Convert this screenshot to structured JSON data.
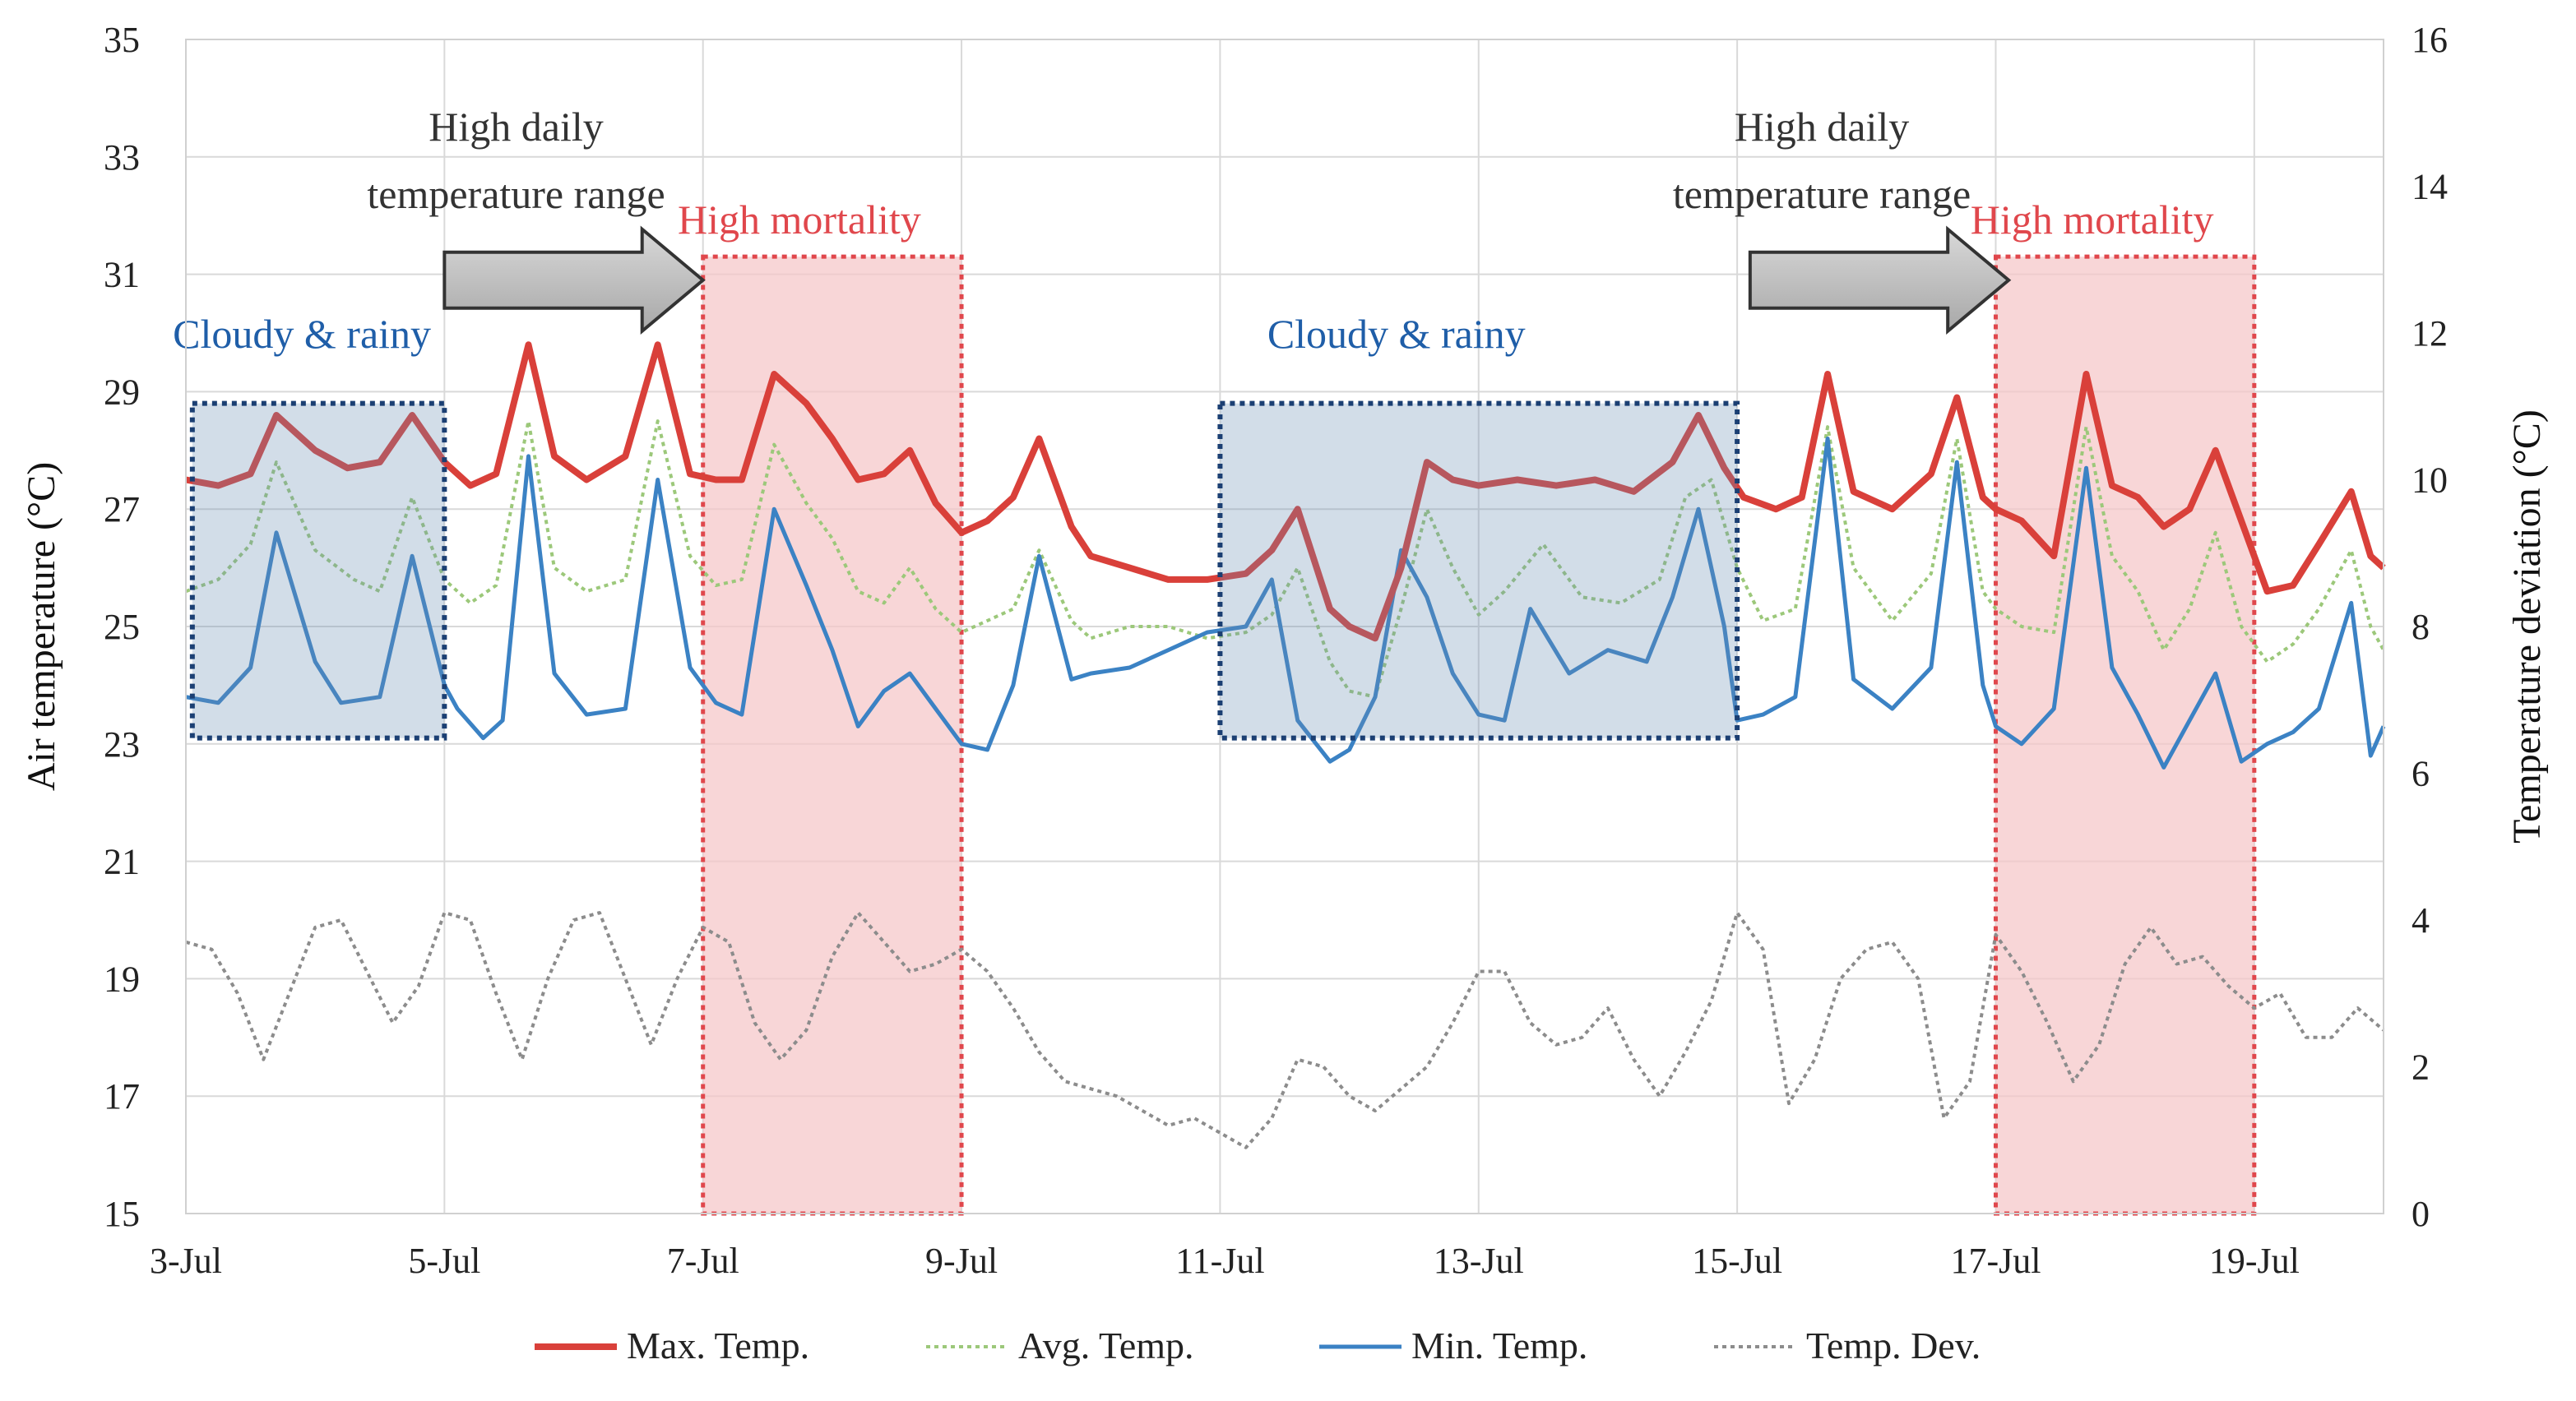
{
  "chart_data": {
    "type": "line",
    "title": "",
    "xlabel": "",
    "ylabel": "Air temperature (°C)",
    "y2label": "Temperature deviation (°C)",
    "xlim": [
      3,
      20
    ],
    "ylim": [
      15,
      35
    ],
    "y2lim": [
      0,
      16
    ],
    "grid": true,
    "x_ticks": [
      3,
      5,
      7,
      9,
      11,
      13,
      15,
      17,
      19
    ],
    "x_tick_labels": [
      "3-Jul",
      "5-Jul",
      "7-Jul",
      "9-Jul",
      "11-Jul",
      "13-Jul",
      "15-Jul",
      "17-Jul",
      "19-Jul"
    ],
    "y_ticks": [
      15,
      17,
      19,
      21,
      23,
      25,
      27,
      29,
      31,
      33,
      35
    ],
    "y_tick_labels": [
      "15",
      "17",
      "19",
      "21",
      "23",
      "25",
      "27",
      "29",
      "31",
      "33",
      "35"
    ],
    "y2_ticks": [
      0,
      2,
      4,
      6,
      8,
      10,
      12,
      14,
      16
    ],
    "y2_tick_labels": [
      "0",
      "2",
      "4",
      "6",
      "8",
      "10",
      "12",
      "14",
      "16"
    ],
    "legend_position": "bottom",
    "series": [
      {
        "name": "Max. Temp.",
        "axis": "left",
        "color": "#d9403a",
        "style": "solid-thick",
        "x": [
          3.0,
          3.25,
          3.5,
          3.7,
          4.0,
          4.25,
          4.5,
          4.75,
          5.0,
          5.2,
          5.4,
          5.65,
          5.85,
          6.1,
          6.4,
          6.65,
          6.9,
          7.1,
          7.3,
          7.55,
          7.8,
          8.0,
          8.2,
          8.4,
          8.6,
          8.8,
          9.0,
          9.2,
          9.4,
          9.6,
          9.85,
          10.0,
          10.3,
          10.6,
          10.9,
          11.2,
          11.4,
          11.6,
          11.85,
          12.0,
          12.2,
          12.4,
          12.6,
          12.8,
          13.0,
          13.3,
          13.6,
          13.9,
          14.2,
          14.5,
          14.7,
          14.9,
          15.05,
          15.3,
          15.5,
          15.7,
          15.9,
          16.2,
          16.5,
          16.7,
          16.9,
          17.0,
          17.2,
          17.45,
          17.7,
          17.9,
          18.1,
          18.3,
          18.5,
          18.7,
          18.9,
          19.1,
          19.3,
          19.5,
          19.75,
          19.9,
          20.0
        ],
        "values": [
          27.5,
          27.4,
          27.6,
          28.6,
          28.0,
          27.7,
          27.8,
          28.6,
          27.8,
          27.4,
          27.6,
          29.8,
          27.9,
          27.5,
          27.9,
          29.8,
          27.6,
          27.5,
          27.5,
          29.3,
          28.8,
          28.2,
          27.5,
          27.6,
          28.0,
          27.1,
          26.6,
          26.8,
          27.2,
          28.2,
          26.7,
          26.2,
          26.0,
          25.8,
          25.8,
          25.9,
          26.3,
          27.0,
          25.3,
          25.0,
          24.8,
          26.0,
          27.8,
          27.5,
          27.4,
          27.5,
          27.4,
          27.5,
          27.3,
          27.8,
          28.6,
          27.7,
          27.2,
          27.0,
          27.2,
          29.3,
          27.3,
          27.0,
          27.6,
          28.9,
          27.2,
          27.0,
          26.8,
          26.2,
          29.3,
          27.4,
          27.2,
          26.7,
          27.0,
          28.0,
          26.8,
          25.6,
          25.7,
          26.4,
          27.3,
          26.2,
          26.0
        ]
      },
      {
        "name": "Avg. Temp.",
        "axis": "left",
        "color": "#9cc87a",
        "style": "dotted",
        "x": [
          3.0,
          3.25,
          3.5,
          3.7,
          4.0,
          4.3,
          4.5,
          4.75,
          5.0,
          5.2,
          5.4,
          5.65,
          5.85,
          6.1,
          6.4,
          6.65,
          6.9,
          7.1,
          7.3,
          7.55,
          7.8,
          8.0,
          8.2,
          8.4,
          8.6,
          8.8,
          9.0,
          9.2,
          9.4,
          9.6,
          9.85,
          10.0,
          10.3,
          10.6,
          10.9,
          11.2,
          11.4,
          11.6,
          11.85,
          12.0,
          12.2,
          12.4,
          12.6,
          12.8,
          13.0,
          13.2,
          13.5,
          13.8,
          14.1,
          14.4,
          14.6,
          14.8,
          15.0,
          15.2,
          15.45,
          15.7,
          15.9,
          16.2,
          16.5,
          16.7,
          16.9,
          17.0,
          17.2,
          17.45,
          17.7,
          17.9,
          18.1,
          18.3,
          18.5,
          18.7,
          18.9,
          19.1,
          19.3,
          19.5,
          19.75,
          19.9,
          20.0
        ],
        "values": [
          25.6,
          25.8,
          26.4,
          27.8,
          26.3,
          25.8,
          25.6,
          27.2,
          25.8,
          25.4,
          25.7,
          28.5,
          26.0,
          25.6,
          25.8,
          28.5,
          26.2,
          25.7,
          25.8,
          28.1,
          27.1,
          26.5,
          25.6,
          25.4,
          26.0,
          25.3,
          24.9,
          25.1,
          25.3,
          26.3,
          25.1,
          24.8,
          25.0,
          25.0,
          24.8,
          24.9,
          25.2,
          26.0,
          24.4,
          23.9,
          23.8,
          25.3,
          27.0,
          26.0,
          25.2,
          25.6,
          26.4,
          25.5,
          25.4,
          25.8,
          27.2,
          27.5,
          26.0,
          25.1,
          25.3,
          28.4,
          26.0,
          25.1,
          25.9,
          28.2,
          25.6,
          25.3,
          25.0,
          24.9,
          28.4,
          26.2,
          25.6,
          24.6,
          25.3,
          26.6,
          25.0,
          24.4,
          24.7,
          25.3,
          26.3,
          25.0,
          24.6
        ]
      },
      {
        "name": "Min. Temp.",
        "axis": "left",
        "color": "#3b82c4",
        "style": "solid",
        "x": [
          3.0,
          3.25,
          3.5,
          3.7,
          4.0,
          4.2,
          4.5,
          4.75,
          5.0,
          5.1,
          5.3,
          5.45,
          5.65,
          5.85,
          6.1,
          6.4,
          6.65,
          6.9,
          7.1,
          7.3,
          7.55,
          7.8,
          8.0,
          8.2,
          8.4,
          8.6,
          8.8,
          9.0,
          9.2,
          9.4,
          9.6,
          9.85,
          10.0,
          10.3,
          10.6,
          10.9,
          11.2,
          11.4,
          11.6,
          11.85,
          12.0,
          12.2,
          12.4,
          12.6,
          12.8,
          13.0,
          13.2,
          13.4,
          13.7,
          14.0,
          14.3,
          14.5,
          14.7,
          14.9,
          15.0,
          15.2,
          15.45,
          15.7,
          15.9,
          16.2,
          16.5,
          16.7,
          16.9,
          17.0,
          17.2,
          17.45,
          17.7,
          17.9,
          18.1,
          18.3,
          18.5,
          18.7,
          18.9,
          19.1,
          19.3,
          19.5,
          19.75,
          19.9,
          20.0
        ],
        "values": [
          23.8,
          23.7,
          24.3,
          26.6,
          24.4,
          23.7,
          23.8,
          26.2,
          24.0,
          23.6,
          23.1,
          23.4,
          27.9,
          24.2,
          23.5,
          23.6,
          27.5,
          24.3,
          23.7,
          23.5,
          27.0,
          25.7,
          24.6,
          23.3,
          23.9,
          24.2,
          23.6,
          23.0,
          22.9,
          24.0,
          26.2,
          24.1,
          24.2,
          24.3,
          24.6,
          24.9,
          25.0,
          25.8,
          23.4,
          22.7,
          22.9,
          23.8,
          26.3,
          25.5,
          24.2,
          23.5,
          23.4,
          25.3,
          24.2,
          24.6,
          24.4,
          25.5,
          27.0,
          25.0,
          23.4,
          23.5,
          23.8,
          28.2,
          24.1,
          23.6,
          24.3,
          27.8,
          24.0,
          23.3,
          23.0,
          23.6,
          27.7,
          24.3,
          23.5,
          22.6,
          23.4,
          24.2,
          22.7,
          23.0,
          23.2,
          23.6,
          25.4,
          22.8,
          23.3
        ]
      },
      {
        "name": "Temp. Dev.",
        "axis": "right",
        "color": "#8c8c8c",
        "style": "dotted",
        "x": [
          3.0,
          3.2,
          3.4,
          3.6,
          3.8,
          4.0,
          4.2,
          4.4,
          4.6,
          4.8,
          5.0,
          5.2,
          5.4,
          5.6,
          5.8,
          6.0,
          6.2,
          6.4,
          6.6,
          6.8,
          7.0,
          7.2,
          7.4,
          7.6,
          7.8,
          8.0,
          8.2,
          8.4,
          8.6,
          8.8,
          9.0,
          9.2,
          9.4,
          9.6,
          9.8,
          10.0,
          10.2,
          10.4,
          10.6,
          10.8,
          11.0,
          11.2,
          11.4,
          11.6,
          11.8,
          12.0,
          12.2,
          12.4,
          12.6,
          12.8,
          13.0,
          13.2,
          13.4,
          13.6,
          13.8,
          14.0,
          14.2,
          14.4,
          14.6,
          14.8,
          15.0,
          15.2,
          15.4,
          15.6,
          15.8,
          16.0,
          16.2,
          16.4,
          16.6,
          16.8,
          17.0,
          17.2,
          17.4,
          17.6,
          17.8,
          18.0,
          18.2,
          18.4,
          18.6,
          18.8,
          19.0,
          19.2,
          19.4,
          19.6,
          19.8,
          20.0
        ],
        "values": [
          3.7,
          3.6,
          3.0,
          2.1,
          3.0,
          3.9,
          4.0,
          3.3,
          2.6,
          3.1,
          4.1,
          4.0,
          3.0,
          2.1,
          3.2,
          4.0,
          4.1,
          3.2,
          2.3,
          3.2,
          3.9,
          3.7,
          2.6,
          2.1,
          2.5,
          3.5,
          4.1,
          3.7,
          3.3,
          3.4,
          3.6,
          3.3,
          2.8,
          2.2,
          1.8,
          1.7,
          1.6,
          1.4,
          1.2,
          1.3,
          1.1,
          0.9,
          1.3,
          2.1,
          2.0,
          1.6,
          1.4,
          1.7,
          2.0,
          2.6,
          3.3,
          3.3,
          2.6,
          2.3,
          2.4,
          2.8,
          2.1,
          1.6,
          2.2,
          2.9,
          4.1,
          3.6,
          1.5,
          2.1,
          3.2,
          3.6,
          3.7,
          3.2,
          1.3,
          1.8,
          3.8,
          3.3,
          2.6,
          1.8,
          2.3,
          3.4,
          3.9,
          3.4,
          3.5,
          3.1,
          2.8,
          3.0,
          2.4,
          2.4,
          2.8,
          2.5
        ]
      }
    ],
    "regions": [
      {
        "kind": "cloudy",
        "x0": 3.05,
        "x1": 5.0,
        "y0": 23.1,
        "y1": 28.8,
        "label": "Cloudy & rainy",
        "color": "#1f5ea8"
      },
      {
        "kind": "cloudy",
        "x0": 11.0,
        "x1": 15.0,
        "y0": 23.1,
        "y1": 28.8,
        "label": "Cloudy & rainy",
        "color": "#1f5ea8"
      },
      {
        "kind": "mortality",
        "x0": 7.0,
        "x1": 9.0,
        "y0": 15.0,
        "y1": 31.3,
        "label": "High mortality",
        "color": "#e0474c"
      },
      {
        "kind": "mortality",
        "x0": 17.0,
        "x1": 19.0,
        "y0": 15.0,
        "y1": 31.3,
        "label": "High mortality",
        "color": "#e0474c"
      }
    ],
    "annotations": [
      {
        "kind": "arrow-label",
        "line1": "High daily",
        "line2": "temperature  range",
        "arrow_x0": 5.0,
        "arrow_x1": 7.0,
        "arrow_y": 30.9
      },
      {
        "kind": "arrow-label",
        "line1": "High daily",
        "line2": "temperature  range",
        "arrow_x0": 15.1,
        "arrow_x1": 17.1,
        "arrow_y": 30.9
      }
    ]
  }
}
